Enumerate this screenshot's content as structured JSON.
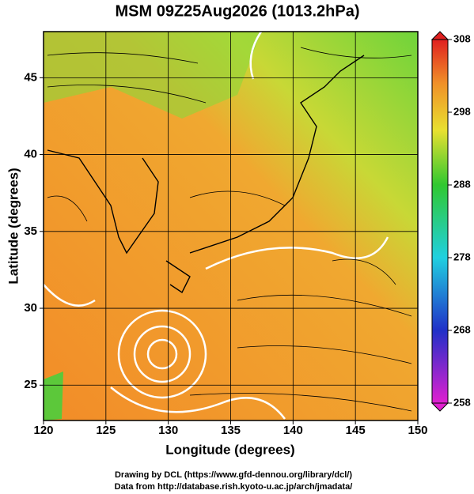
{
  "chart_data": {
    "type": "map",
    "title": "MSM 09Z25Aug2026 (1013.2hPa)",
    "x_label": "Longitude (degrees)",
    "y_label": "Latitude  (degrees)",
    "xlim": [
      120,
      150
    ],
    "xticks": [
      120,
      125,
      130,
      135,
      140,
      145,
      150
    ],
    "ylim": [
      22.7,
      48
    ],
    "yticks": [
      25,
      30,
      35,
      40,
      45
    ],
    "grid": true,
    "colorbar": {
      "lim": [
        258,
        308
      ],
      "ticks": [
        258,
        268,
        278,
        288,
        298,
        308
      ]
    },
    "credits": [
      "Drawing by DCL (https://www.gfd-dennou.org/library/dcl/)",
      "Data from http://database.rish.kyoto-u.ac.jp/arch/jmadata/"
    ]
  }
}
